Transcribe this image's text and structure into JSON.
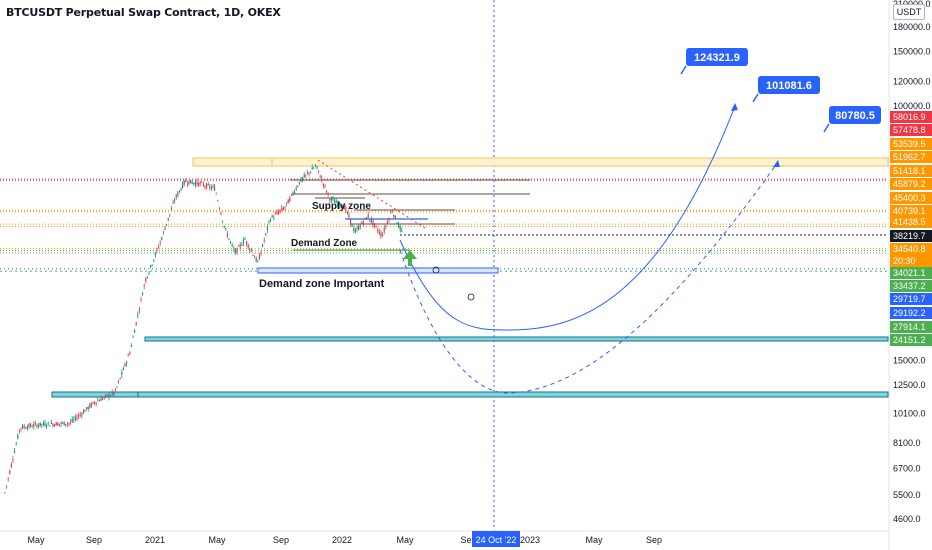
{
  "header": {
    "title": "BTCUSDT Perpetual Swap Contract, 1D, OKEX",
    "currency": "USDT",
    "top_partial_label": "210000.0"
  },
  "chart_data": {
    "type": "candlestick",
    "symbol": "BTCUSDT",
    "exchange": "OKEX",
    "interval": "1D",
    "y_scale": "log",
    "y_ticks": [
      180000.0,
      150000.0,
      120000.0,
      100000.0,
      15000.0,
      12500.0,
      10100.0,
      8100.0,
      6700.0,
      5500.0,
      4600.0
    ],
    "x_ticks": [
      "May",
      "Sep",
      "2021",
      "May",
      "Sep",
      "2022",
      "May",
      "Se",
      "2023",
      "May",
      "Sep"
    ],
    "time_marker": "24 Oct '22",
    "price_labels": [
      {
        "text": "58016.9",
        "color": "#f23645"
      },
      {
        "text": "57478.8",
        "color": "#f23645"
      },
      {
        "text": "53539.5",
        "color": "#ff9800"
      },
      {
        "text": "51962.7",
        "color": "#ff9800"
      },
      {
        "text": "51418.1",
        "color": "#ff9800"
      },
      {
        "text": "45879.2",
        "color": "#ff9800"
      },
      {
        "text": "45400.3",
        "color": "#ff9800"
      },
      {
        "text": "40739.1",
        "color": "#ff9800"
      },
      {
        "text": "41438.5",
        "color": "#ff9800"
      },
      {
        "text": "38219.7",
        "color": "#131722"
      },
      {
        "text": "34540.8",
        "color": "#ff9800"
      },
      {
        "text": "20:30",
        "color": "#ff9800"
      },
      {
        "text": "34021.1",
        "color": "#4caf50"
      },
      {
        "text": "33437.2",
        "color": "#4caf50"
      },
      {
        "text": "29719.7",
        "color": "#2962ff"
      },
      {
        "text": "29192.2",
        "color": "#2962ff"
      },
      {
        "text": "27914.1",
        "color": "#4caf50"
      },
      {
        "text": "24151.2",
        "color": "#4caf50"
      }
    ],
    "callouts": [
      "124321.9",
      "101081.6",
      "80780.5"
    ],
    "annotations": [
      "Supply zone",
      "Demand Zone",
      "Demand zone Important",
      "O",
      "O"
    ],
    "colors": {
      "up": "#089981",
      "down": "#f23645",
      "projection": "#2962ff",
      "zone_fill": "#fff2cc",
      "support_band": "#7fd4e0"
    }
  }
}
